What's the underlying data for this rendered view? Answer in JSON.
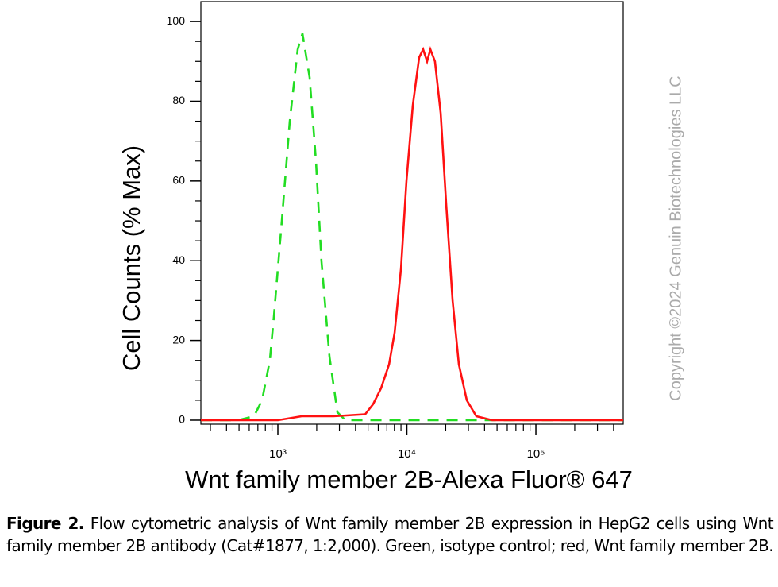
{
  "chart_data": {
    "type": "line",
    "log_x": true,
    "xlabel": "Wnt family member 2B-Alexa Fluor® 647",
    "ylabel": "Cell Counts (% Max)",
    "xlim": [
      253,
      475000
    ],
    "ylim": [
      -1,
      105
    ],
    "xticks": [
      {
        "value": 1000,
        "label": "10³"
      },
      {
        "value": 10000,
        "label": "10⁴"
      },
      {
        "value": 100000,
        "label": "10⁵"
      }
    ],
    "xminorticks": [
      300,
      400,
      500,
      600,
      700,
      800,
      900,
      2000,
      3000,
      4000,
      5000,
      6000,
      7000,
      8000,
      9000,
      20000,
      30000,
      40000,
      50000,
      60000,
      70000,
      80000,
      90000,
      200000,
      300000,
      400000
    ],
    "yticks": [
      0,
      20,
      40,
      60,
      80,
      100
    ],
    "yminorticks": [
      5,
      10,
      15,
      25,
      30,
      35,
      45,
      50,
      55,
      65,
      70,
      75,
      85,
      90,
      95
    ],
    "series": [
      {
        "color": "#22dd22",
        "dashed": true,
        "x": [
          253,
          492,
          653,
          754,
          867,
          931,
          1074,
          1237,
          1426,
          1552,
          1763,
          1974,
          2177,
          2512,
          2895,
          3336,
          4120,
          475000
        ],
        "values": [
          0,
          0,
          1,
          5,
          15,
          26,
          50,
          75,
          93,
          97,
          86,
          65,
          40,
          16,
          2,
          0,
          0,
          0
        ]
      },
      {
        "color": "#ff1111",
        "dashed": false,
        "x": [
          253,
          1000,
          1530,
          2698,
          4753,
          5470,
          6310,
          7278,
          8036,
          8997,
          9934,
          11120,
          12450,
          13370,
          14350,
          15200,
          16520,
          18270,
          20180,
          22600,
          25300,
          29150,
          34540,
          45900,
          475000
        ],
        "values": [
          0,
          0,
          1,
          1,
          1.5,
          4,
          8,
          14,
          22,
          38,
          60,
          79,
          91,
          93,
          90,
          93,
          90,
          77,
          54,
          30,
          14,
          5,
          1,
          0,
          0
        ]
      }
    ]
  },
  "watermark": "Copyright ©2024 Genuin Biotechnologies LLC",
  "caption": {
    "label": "Figure 2.",
    "text": "Flow cytometric analysis of Wnt family member 2B expression in HepG2 cells using Wnt family member 2B antibody (Cat#1877, 1:2,000). Green, isotype control; red, Wnt family member 2B."
  }
}
